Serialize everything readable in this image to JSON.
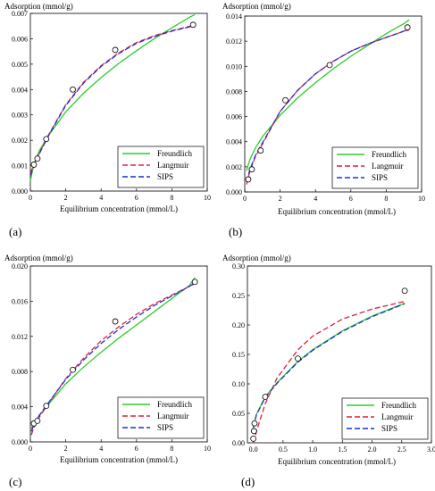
{
  "colors": {
    "freundlich": "#2ecc2e",
    "langmuir": "#e0203a",
    "sips": "#1e2fd6",
    "axis": "#000000"
  },
  "chart_data": [
    {
      "type": "line",
      "panel_label": "(a)",
      "ylabel": "Adsorption (mmol/g)",
      "xlabel": "Equilibrium concentration (mmol/L)",
      "xlim": [
        0,
        10
      ],
      "ylim": [
        0,
        0.007
      ],
      "xticks": [
        "0",
        "2",
        "4",
        "6",
        "8",
        "10"
      ],
      "yticks": [
        "0.000",
        "0.001",
        "0.002",
        "0.003",
        "0.004",
        "0.005",
        "0.006",
        "0.007"
      ],
      "points": {
        "x": [
          0.2,
          0.4,
          0.9,
          2.4,
          4.8,
          9.2
        ],
        "y": [
          0.00104,
          0.00128,
          0.00205,
          0.004,
          0.00556,
          0.00655
        ]
      },
      "series": [
        {
          "name": "Freundlich",
          "style": "solid",
          "x": [
            0,
            0.2,
            0.5,
            1,
            2,
            3,
            4,
            5,
            6,
            7,
            8,
            9,
            9.3
          ],
          "y": [
            0.0004,
            0.00108,
            0.00158,
            0.00216,
            0.00312,
            0.00385,
            0.00447,
            0.00503,
            0.00553,
            0.006,
            0.00643,
            0.00685,
            0.00695
          ]
        },
        {
          "name": "Langmuir",
          "style": "dashed",
          "x": [
            0,
            0.2,
            0.5,
            1,
            2,
            3,
            4,
            5,
            6,
            7,
            8,
            9,
            9.3
          ],
          "y": [
            0.0007,
            0.00104,
            0.00148,
            0.00218,
            0.0034,
            0.00428,
            0.00494,
            0.00545,
            0.00585,
            0.00612,
            0.00632,
            0.00649,
            0.00655
          ]
        },
        {
          "name": "SIPS",
          "style": "dashed",
          "x": [
            0,
            0.2,
            0.5,
            1,
            2,
            3,
            4,
            5,
            6,
            7,
            8,
            9,
            9.3
          ],
          "y": [
            0.0006,
            0.001,
            0.00146,
            0.00215,
            0.00337,
            0.00425,
            0.00491,
            0.00542,
            0.00582,
            0.00609,
            0.0063,
            0.00647,
            0.00654
          ]
        }
      ],
      "legend": [
        "Freundlich",
        "Langmuir",
        "SIPS"
      ]
    },
    {
      "type": "line",
      "panel_label": "(b)",
      "ylabel": "Adsorption (mmol/g)",
      "xlabel": "Equilibrium concentration (mmol/L)",
      "xlim": [
        0,
        10
      ],
      "ylim": [
        0,
        0.014
      ],
      "xticks": [
        "0",
        "2",
        "4",
        "6",
        "8",
        "10"
      ],
      "yticks": [
        "0.000",
        "0.002",
        "0.004",
        "0.006",
        "0.008",
        "0.010",
        "0.012",
        "0.014"
      ],
      "points": {
        "x": [
          0.2,
          0.4,
          0.9,
          2.3,
          4.8,
          9.2
        ],
        "y": [
          0.001,
          0.0018,
          0.0033,
          0.0073,
          0.0101,
          0.0131
        ]
      },
      "series": [
        {
          "name": "Freundlich",
          "style": "solid",
          "x": [
            0.1,
            0.3,
            0.6,
            1,
            2,
            3,
            4,
            5,
            6,
            7,
            8,
            9,
            9.3
          ],
          "y": [
            0.0017,
            0.0026,
            0.0035,
            0.0044,
            0.0061,
            0.0075,
            0.0087,
            0.0098,
            0.0108,
            0.0117,
            0.0126,
            0.0134,
            0.0137
          ]
        },
        {
          "name": "Langmuir",
          "style": "dashed",
          "x": [
            0.1,
            0.3,
            0.6,
            1,
            2,
            3,
            4,
            5,
            6,
            7,
            8,
            9,
            9.3
          ],
          "y": [
            0.0006,
            0.0017,
            0.0028,
            0.0038,
            0.0064,
            0.0081,
            0.0094,
            0.0104,
            0.0112,
            0.0118,
            0.0123,
            0.0128,
            0.0129
          ]
        },
        {
          "name": "SIPS",
          "style": "dashed",
          "x": [
            0.1,
            0.3,
            0.6,
            1,
            2,
            3,
            4,
            5,
            6,
            7,
            8,
            9,
            9.3
          ],
          "y": [
            0.0008,
            0.0018,
            0.0029,
            0.0039,
            0.0064,
            0.0081,
            0.0094,
            0.0104,
            0.0112,
            0.0118,
            0.0123,
            0.0128,
            0.013
          ]
        }
      ],
      "legend": [
        "Freundlich",
        "Langmuir",
        "SIPS"
      ]
    },
    {
      "type": "line",
      "panel_label": "(c)",
      "ylabel": "Adsorption (mmol/g)",
      "xlabel": "Equilibrium concentration (mmol/L)",
      "xlim": [
        0,
        10
      ],
      "ylim": [
        0,
        0.02
      ],
      "xticks": [
        "0",
        "2",
        "4",
        "6",
        "8",
        "10"
      ],
      "yticks": [
        "0.000",
        "0.004",
        "0.008",
        "0.012",
        "0.016",
        "0.020"
      ],
      "points": {
        "x": [
          0.2,
          0.4,
          0.9,
          2.4,
          4.8,
          9.3
        ],
        "y": [
          0.0021,
          0.0024,
          0.0041,
          0.0082,
          0.0137,
          0.0182
        ]
      },
      "series": [
        {
          "name": "Freundlich",
          "style": "solid",
          "x": [
            0.05,
            0.2,
            0.5,
            1,
            2,
            3,
            4,
            5,
            6,
            7,
            8,
            9,
            9.3
          ],
          "y": [
            0.0015,
            0.0022,
            0.003,
            0.0042,
            0.0066,
            0.0085,
            0.0102,
            0.0118,
            0.0133,
            0.0148,
            0.0163,
            0.0178,
            0.0187
          ]
        },
        {
          "name": "Langmuir",
          "style": "dashed",
          "x": [
            0.05,
            0.2,
            0.5,
            1,
            2,
            3,
            4,
            5,
            6,
            7,
            8,
            9,
            9.3
          ],
          "y": [
            0.0008,
            0.0016,
            0.0028,
            0.0043,
            0.0072,
            0.0095,
            0.0115,
            0.0131,
            0.0145,
            0.0157,
            0.0167,
            0.0177,
            0.018
          ]
        },
        {
          "name": "SIPS",
          "style": "dashed",
          "x": [
            0.05,
            0.2,
            0.5,
            1,
            2,
            3,
            4,
            5,
            6,
            7,
            8,
            9,
            9.3
          ],
          "y": [
            0.0012,
            0.0019,
            0.003,
            0.0044,
            0.0071,
            0.0093,
            0.0112,
            0.0128,
            0.0142,
            0.0155,
            0.0166,
            0.0177,
            0.0181
          ]
        }
      ],
      "legend": [
        "Freundlich",
        "Langmuir",
        "SIPS"
      ]
    },
    {
      "type": "line",
      "panel_label": "(d)",
      "ylabel": "Adsorption (mmol/g)",
      "xlabel": "Equilibrium concentration (mmol/L)",
      "xlim": [
        -0.1,
        3.0
      ],
      "ylim": [
        0,
        0.3
      ],
      "xticks": [
        "0.0",
        "0.5",
        "1.0",
        "1.5",
        "2.0",
        "2.5",
        "3.0"
      ],
      "yticks": [
        "0.00",
        "0.05",
        "0.10",
        "0.15",
        "0.20",
        "0.25",
        "0.30"
      ],
      "xtick_values": [
        0,
        0.5,
        1.0,
        1.5,
        2.0,
        2.5,
        3.0
      ],
      "points": {
        "x": [
          0.0,
          0.01,
          0.02,
          0.2,
          0.75,
          2.55
        ],
        "y": [
          0.007,
          0.02,
          0.033,
          0.078,
          0.143,
          0.258
        ]
      },
      "series": [
        {
          "name": "Freundlich",
          "style": "solid",
          "x": [
            0.0,
            0.05,
            0.1,
            0.2,
            0.4,
            0.75,
            1.0,
            1.5,
            2.0,
            2.55
          ],
          "y": [
            0.025,
            0.048,
            0.058,
            0.078,
            0.102,
            0.138,
            0.158,
            0.19,
            0.215,
            0.237
          ]
        },
        {
          "name": "Langmuir",
          "style": "dashed",
          "x": [
            0.0,
            0.05,
            0.1,
            0.2,
            0.4,
            0.75,
            1.0,
            1.5,
            2.0,
            2.55
          ],
          "y": [
            0.0,
            0.018,
            0.035,
            0.066,
            0.11,
            0.158,
            0.181,
            0.21,
            0.227,
            0.24
          ]
        },
        {
          "name": "SIPS",
          "style": "dashed",
          "x": [
            0.0,
            0.05,
            0.1,
            0.2,
            0.4,
            0.75,
            1.0,
            1.5,
            2.0,
            2.55
          ],
          "y": [
            0.026,
            0.047,
            0.057,
            0.077,
            0.101,
            0.137,
            0.157,
            0.189,
            0.214,
            0.236
          ]
        }
      ],
      "legend": [
        "Freundlich",
        "Langmuir",
        "SIPS"
      ]
    }
  ]
}
